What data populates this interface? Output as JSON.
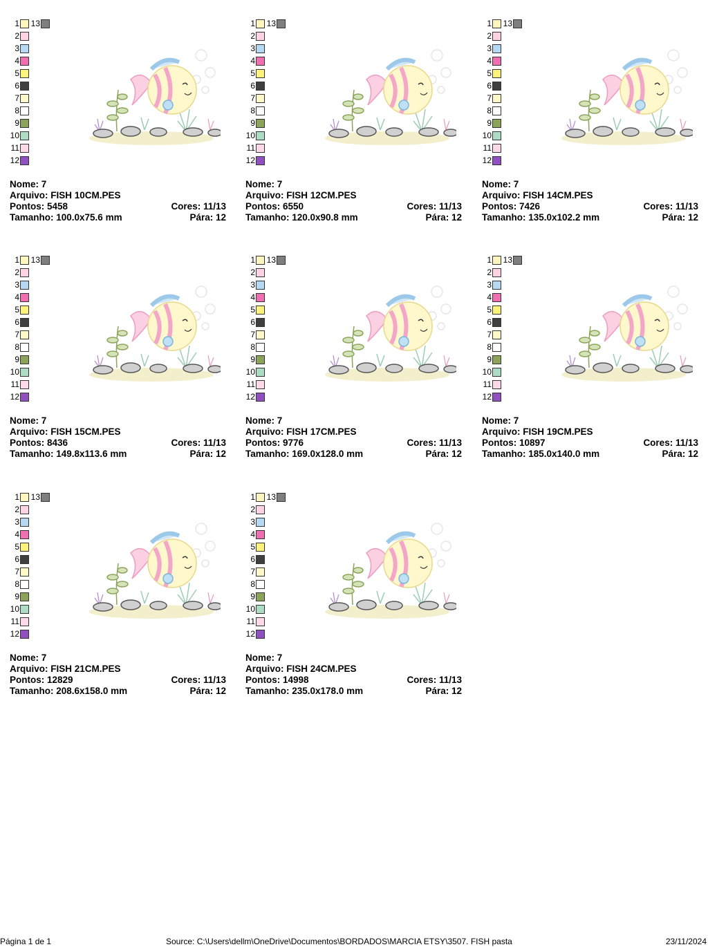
{
  "palette": [
    {
      "label": "1",
      "color": "#fff6bf"
    },
    {
      "label": "2",
      "color": "#ffd3e4"
    },
    {
      "label": "3",
      "color": "#b5d9f2"
    },
    {
      "label": "4",
      "color": "#f06fb0"
    },
    {
      "label": "5",
      "color": "#fff27d"
    },
    {
      "label": "6",
      "color": "#3f3f3f"
    },
    {
      "label": "7",
      "color": "#fff8c9"
    },
    {
      "label": "8",
      "color": "#ffffff"
    },
    {
      "label": "9",
      "color": "#8ca35a"
    },
    {
      "label": "10",
      "color": "#acdcc3"
    },
    {
      "label": "11",
      "color": "#ffd9ea"
    },
    {
      "label": "12",
      "color": "#9050c0"
    },
    {
      "label": "13",
      "color": "#7f7f7f"
    }
  ],
  "cards": [
    {
      "name": "Nome: 7",
      "file": "Arquivo: FISH 10CM.PES",
      "stitches": "Pontos: 5458",
      "colors": "Cores: 11/13",
      "size": "Tamanho: 100.0x75.6 mm",
      "stops": "Pára: 12"
    },
    {
      "name": "Nome: 7",
      "file": "Arquivo: FISH 12CM.PES",
      "stitches": "Pontos: 6550",
      "colors": "Cores: 11/13",
      "size": "Tamanho: 120.0x90.8 mm",
      "stops": "Pára: 12"
    },
    {
      "name": "Nome: 7",
      "file": "Arquivo: FISH 14CM.PES",
      "stitches": "Pontos: 7426",
      "colors": "Cores: 11/13",
      "size": "Tamanho: 135.0x102.2 mm",
      "stops": "Pára: 12"
    },
    {
      "name": "Nome: 7",
      "file": "Arquivo: FISH 15CM.PES",
      "stitches": "Pontos: 8436",
      "colors": "Cores: 11/13",
      "size": "Tamanho: 149.8x113.6 mm",
      "stops": "Pára: 12"
    },
    {
      "name": "Nome: 7",
      "file": "Arquivo: FISH 17CM.PES",
      "stitches": "Pontos: 9776",
      "colors": "Cores: 11/13",
      "size": "Tamanho: 169.0x128.0 mm",
      "stops": "Pára: 12"
    },
    {
      "name": "Nome: 7",
      "file": "Arquivo: FISH 19CM.PES",
      "stitches": "Pontos: 10897",
      "colors": "Cores: 11/13",
      "size": "Tamanho: 185.0x140.0 mm",
      "stops": "Pára: 12"
    },
    {
      "name": "Nome: 7",
      "file": "Arquivo: FISH 21CM.PES",
      "stitches": "Pontos: 12829",
      "colors": "Cores: 11/13",
      "size": "Tamanho: 208.6x158.0 mm",
      "stops": "Pára: 12"
    },
    {
      "name": "Nome: 7",
      "file": "Arquivo: FISH 24CM.PES",
      "stitches": "Pontos: 14998",
      "colors": "Cores: 11/13",
      "size": "Tamanho: 235.0x178.0 mm",
      "stops": "Pára: 12"
    }
  ],
  "footer": {
    "page": "Página 1 de 1",
    "source": "Source: C:\\Users\\dellm\\OneDrive\\Documentos\\BORDADOS\\MARCIA ETSY\\3507. FISH pasta",
    "date": "23/11/2024"
  }
}
